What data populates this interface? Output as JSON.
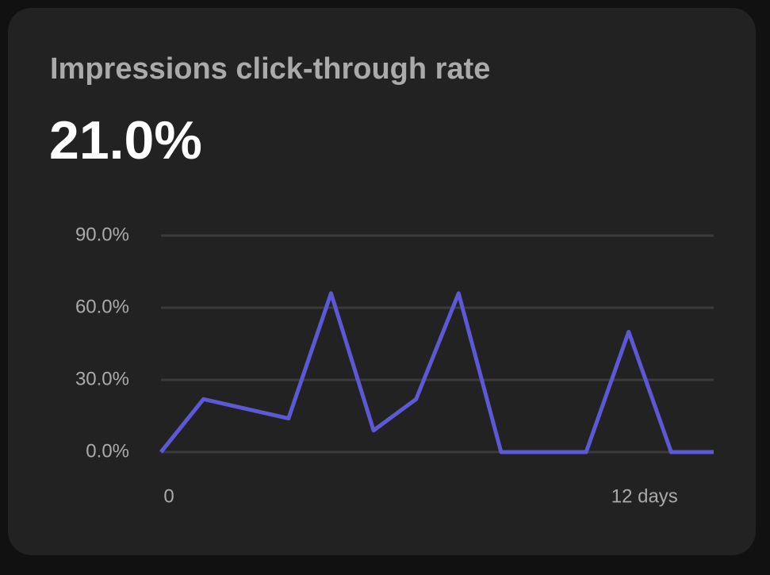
{
  "card": {
    "title": "Impressions click-through rate",
    "value": "21.0%"
  },
  "chart_data": {
    "type": "line",
    "categories": [
      "0",
      null,
      null,
      null,
      null,
      null,
      null,
      null,
      null,
      null,
      null,
      "12 days",
      null,
      null
    ],
    "series": [
      {
        "name": "Impressions click-through rate",
        "color": "#5d58d4",
        "values": [
          0,
          22,
          18,
          14,
          66,
          9,
          22,
          66,
          0,
          0,
          0,
          50,
          0,
          0
        ]
      }
    ],
    "ylim": [
      0,
      90
    ],
    "yticks": [
      {
        "value": 0,
        "label": "0.0%"
      },
      {
        "value": 30,
        "label": "30.0%"
      },
      {
        "value": 60,
        "label": "60.0%"
      },
      {
        "value": 90,
        "label": "90.0%"
      }
    ],
    "grid": true
  }
}
